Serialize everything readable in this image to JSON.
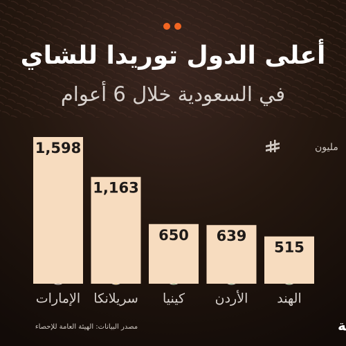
{
  "chart_data": {
    "type": "bar",
    "title": "أعلى الدول توريدا للشاي",
    "subtitle": "في السعودية خلال 6 أعوام",
    "unit": "مليون",
    "categories": [
      "الإمارات",
      "سريلانكا",
      "كينيا",
      "الأردن",
      "الهند"
    ],
    "values": [
      1598,
      1163,
      650,
      639,
      515
    ],
    "value_labels": [
      "1,598",
      "1,163",
      "650",
      "639",
      "515"
    ],
    "color": "#f7dcbf",
    "source": "مصدر البيانات: الهيئة العامة للإحصاء",
    "brand": "الاقتصادية"
  }
}
